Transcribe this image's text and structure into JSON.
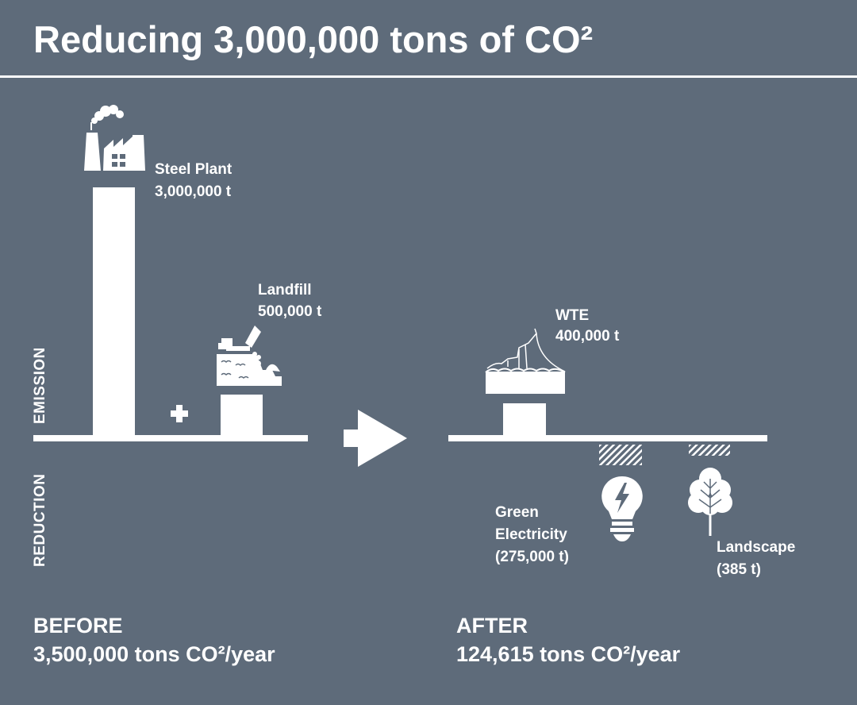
{
  "title": "Reducing 3,000,000 tons of CO²",
  "axis": {
    "emission_label": "EMISSION",
    "reduction_label": "REDUCTION"
  },
  "before": {
    "steel_plant": {
      "name": "Steel Plant",
      "value": "3,000,000 t",
      "icon": "factory-icon"
    },
    "landfill": {
      "name": "Landfill",
      "value": "500,000 t",
      "icon": "landfill-truck-icon"
    },
    "plus_icon": "plus-icon",
    "heading": "BEFORE",
    "total": "3,500,000 tons CO²/year"
  },
  "arrow_icon": "arrow-right-icon",
  "after": {
    "wte": {
      "name": "WTE",
      "value": "400,000 t",
      "icon": "wte-plant-icon"
    },
    "green_electricity": {
      "line1": "Green",
      "line2": "Electricity",
      "value": "(275,000 t)",
      "icon": "lightbulb-icon"
    },
    "landscape": {
      "name": "Landscape",
      "value": "(385 t)",
      "icon": "tree-icon"
    },
    "heading": "AFTER",
    "total": "124,615 tons CO²/year"
  },
  "colors": {
    "background": "#5e6b7a",
    "foreground": "#ffffff"
  }
}
